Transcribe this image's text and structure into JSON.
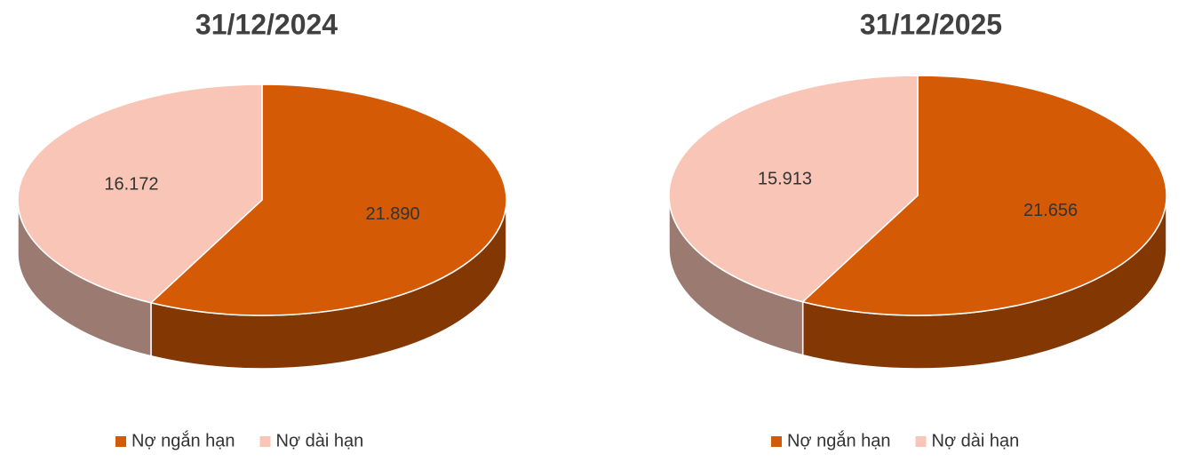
{
  "chart_data": [
    {
      "type": "pie",
      "title": "31/12/2024",
      "categories": [
        "Nợ ngắn hạn",
        "Nợ dài hạn"
      ],
      "values": [
        21890,
        16172
      ],
      "value_labels": [
        "21.890",
        "16.172"
      ],
      "colors": [
        "#d45a06",
        "#f8c5b6"
      ]
    },
    {
      "type": "pie",
      "title": "31/12/2025",
      "categories": [
        "Nợ ngắn hạn",
        "Nợ dài hạn"
      ],
      "values": [
        21656,
        15913
      ],
      "value_labels": [
        "21.656",
        "15.913"
      ],
      "colors": [
        "#d45a06",
        "#f8c5b6"
      ]
    }
  ]
}
